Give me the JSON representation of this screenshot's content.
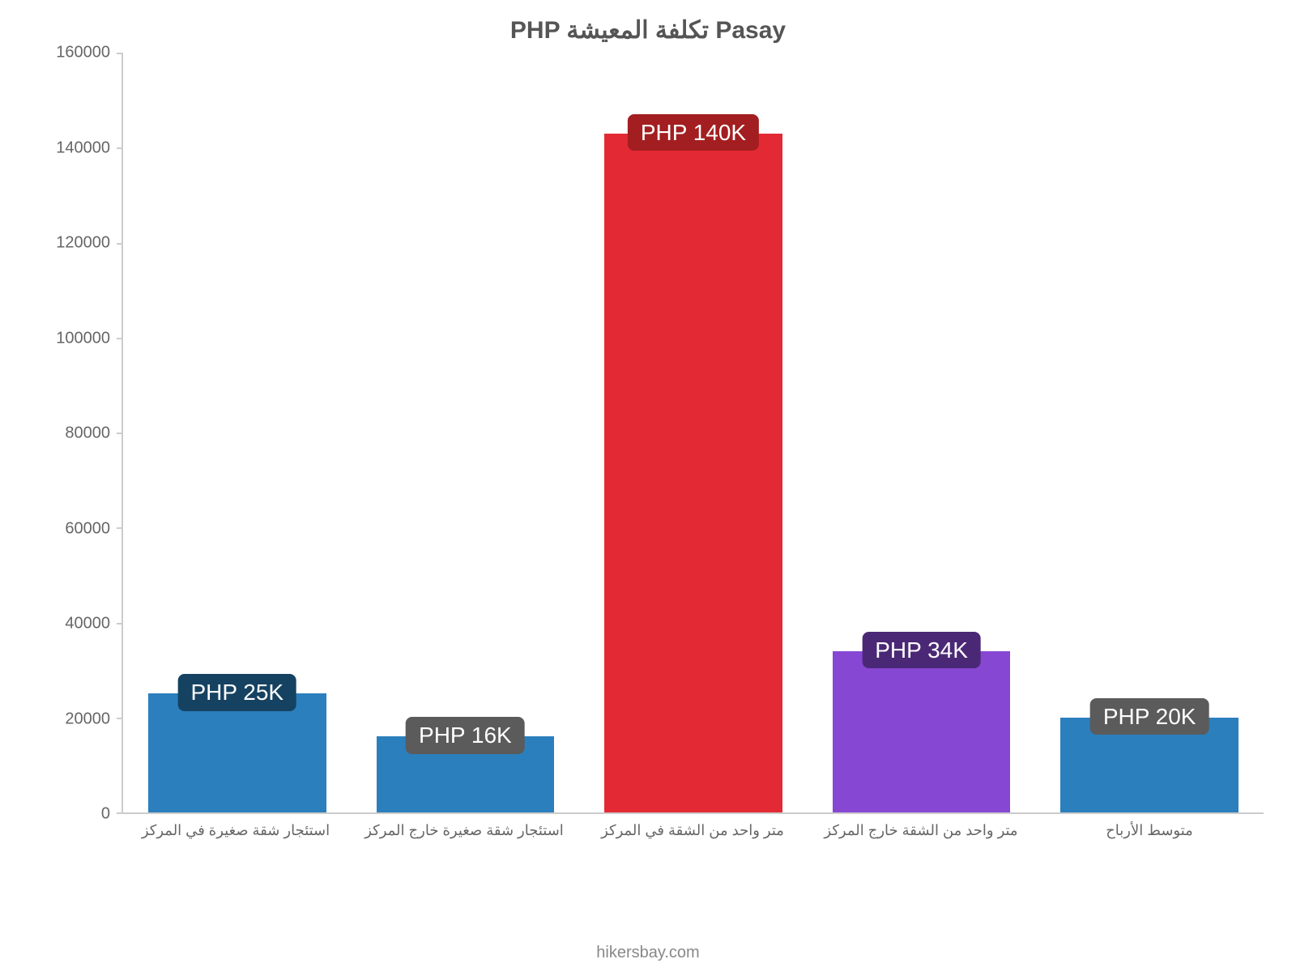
{
  "chart": {
    "type": "bar",
    "title": "PHP تكلفة المعيشة Pasay",
    "title_fontsize": 30,
    "title_color": "#555555",
    "ylim": [
      0,
      160000
    ],
    "ytick_step": 20000,
    "yticks": [
      {
        "v": 0,
        "label": "0"
      },
      {
        "v": 20000,
        "label": "20000"
      },
      {
        "v": 40000,
        "label": "40000"
      },
      {
        "v": 60000,
        "label": "60000"
      },
      {
        "v": 80000,
        "label": "80000"
      },
      {
        "v": 100000,
        "label": "100000"
      },
      {
        "v": 120000,
        "label": "120000"
      },
      {
        "v": 140000,
        "label": "140000"
      },
      {
        "v": 160000,
        "label": "160000"
      }
    ],
    "axis_color": "#cccccc",
    "tick_label_color": "#666666",
    "tick_label_fontsize": 20,
    "background_color": "#ffffff",
    "bar_width": 0.78,
    "bars": [
      {
        "category": "استئجار شقة صغيرة في المركز",
        "value": 25000,
        "bar_color": "#2b7fbd",
        "value_label": "PHP 25K",
        "label_bg": "#164261",
        "label_text_color": "#ffffff",
        "label_fontsize": 28
      },
      {
        "category": "استئجار شقة صغيرة خارج المركز",
        "value": 16000,
        "bar_color": "#2b7fbd",
        "value_label": "PHP 16K",
        "label_bg": "#5b5b5b",
        "label_text_color": "#ffffff",
        "label_fontsize": 28
      },
      {
        "category": "متر واحد من الشقة في المركز",
        "value": 143000,
        "bar_color": "#e32a34",
        "value_label": "PHP 140K",
        "label_bg": "#a31e20",
        "label_text_color": "#ffffff",
        "label_fontsize": 28
      },
      {
        "category": "متر واحد من الشقة خارج المركز",
        "value": 34000,
        "bar_color": "#8647d3",
        "value_label": "PHP 34K",
        "label_bg": "#4b2876",
        "label_text_color": "#ffffff",
        "label_fontsize": 28
      },
      {
        "category": "متوسط الأرباح",
        "value": 20000,
        "bar_color": "#2b7fbd",
        "value_label": "PHP 20K",
        "label_bg": "#5b5b5b",
        "label_text_color": "#ffffff",
        "label_fontsize": 28
      }
    ],
    "x_label_fontsize": 18,
    "x_label_color": "#666666",
    "footer": "hikersbay.com",
    "footer_color": "#888888",
    "footer_fontsize": 20
  }
}
